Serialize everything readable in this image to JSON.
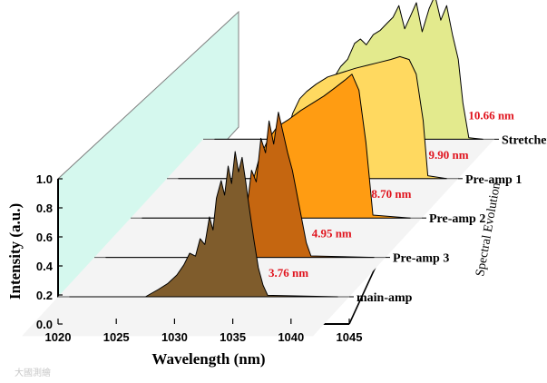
{
  "chart_data": {
    "type": "area",
    "style": "3d-waterfall",
    "xlabel": "Wavelength (nm)",
    "ylabel": "Intensity (a.u.)",
    "zlabel": "Spectral Evolution",
    "xlim": [
      1020,
      1045
    ],
    "ylim": [
      0.0,
      1.0
    ],
    "x_ticks": [
      "1020",
      "1025",
      "1030",
      "1035",
      "1040",
      "1045"
    ],
    "y_ticks": [
      "0.0",
      "0.2",
      "0.4",
      "0.6",
      "0.8",
      "1.0"
    ],
    "series": [
      {
        "name": "Stretcher",
        "bandwidth": "10.66 nm",
        "color": "#e3ea8d",
        "x": [
          1021,
          1029.4,
          1030.2,
          1030.8,
          1031.2,
          1031.8,
          1032.4,
          1033.0,
          1033.5,
          1034.0,
          1034.6,
          1035.2,
          1035.8,
          1036.3,
          1036.8,
          1037.3,
          1037.8,
          1038.3,
          1038.8,
          1039.4,
          1039.9,
          1040.4,
          1040.9,
          1041.4,
          1041.9,
          1042.3,
          1042.8,
          1044
        ],
        "y": [
          0,
          0,
          0.12,
          0.25,
          0.42,
          0.5,
          0.55,
          0.66,
          0.69,
          0.65,
          0.72,
          0.75,
          0.8,
          0.84,
          0.92,
          0.76,
          0.85,
          0.94,
          0.74,
          0.9,
          0.99,
          0.82,
          0.92,
          0.72,
          0.55,
          0.25,
          0.01,
          0
        ]
      },
      {
        "name": "Pre-amp 1",
        "bandwidth": "9.90 nm",
        "color": "#ffd960",
        "x": [
          1021,
          1029.0,
          1029.6,
          1030.2,
          1030.8,
          1031.4,
          1032.0,
          1032.8,
          1033.8,
          1035.0,
          1036.2,
          1037.2,
          1038.2,
          1039.2,
          1040.0,
          1040.8,
          1041.4,
          1042.0,
          1042.4,
          1044
        ],
        "y": [
          0,
          0,
          0.1,
          0.28,
          0.45,
          0.55,
          0.6,
          0.65,
          0.7,
          0.73,
          0.76,
          0.78,
          0.8,
          0.82,
          0.84,
          0.82,
          0.72,
          0.4,
          0.02,
          0
        ]
      },
      {
        "name": "Pre-amp 2",
        "bandwidth": "8.70 nm",
        "color": "#ff9c12",
        "x": [
          1021,
          1029.2,
          1029.8,
          1030.4,
          1031.0,
          1031.8,
          1032.6,
          1033.6,
          1034.6,
          1035.6,
          1036.6,
          1037.6,
          1038.4,
          1039.0,
          1039.6,
          1040.2,
          1040.8,
          1044
        ],
        "y": [
          0,
          0,
          0.08,
          0.22,
          0.4,
          0.54,
          0.63,
          0.68,
          0.74,
          0.79,
          0.84,
          0.9,
          0.95,
          0.99,
          0.88,
          0.52,
          0.02,
          0
        ]
      },
      {
        "name": "Pre-amp 3",
        "bandwidth": "4.95 nm",
        "color": "#c56610",
        "x": [
          1021,
          1028.5,
          1029.8,
          1030.8,
          1031.6,
          1032.2,
          1032.7,
          1033.1,
          1033.5,
          1033.9,
          1034.3,
          1034.7,
          1035.0,
          1035.4,
          1035.8,
          1036.2,
          1036.6,
          1037.0,
          1037.6,
          1038.2,
          1038.6,
          1044
        ],
        "y": [
          0,
          0,
          0.06,
          0.12,
          0.22,
          0.28,
          0.42,
          0.34,
          0.6,
          0.52,
          0.82,
          0.72,
          0.94,
          0.78,
          1.0,
          0.86,
          0.72,
          0.6,
          0.35,
          0.1,
          0.01,
          0
        ]
      },
      {
        "name": "main-amp",
        "bandwidth": "3.76 nm",
        "color": "#7f5c2c",
        "x": [
          1021,
          1027.5,
          1028.6,
          1029.4,
          1030.2,
          1030.8,
          1031.3,
          1031.8,
          1032.2,
          1032.6,
          1033.0,
          1033.3,
          1033.6,
          1034.0,
          1034.3,
          1034.6,
          1034.9,
          1035.2,
          1035.5,
          1035.8,
          1036.1,
          1036.4,
          1036.8,
          1037.2,
          1037.6,
          1038.0,
          1044
        ],
        "y": [
          0,
          0,
          0.05,
          0.09,
          0.15,
          0.22,
          0.3,
          0.28,
          0.4,
          0.36,
          0.55,
          0.46,
          0.68,
          0.8,
          0.7,
          0.9,
          0.78,
          1.0,
          0.86,
          0.96,
          0.8,
          0.62,
          0.4,
          0.2,
          0.08,
          0.01,
          0
        ]
      }
    ]
  },
  "watermark": "大國測繪"
}
